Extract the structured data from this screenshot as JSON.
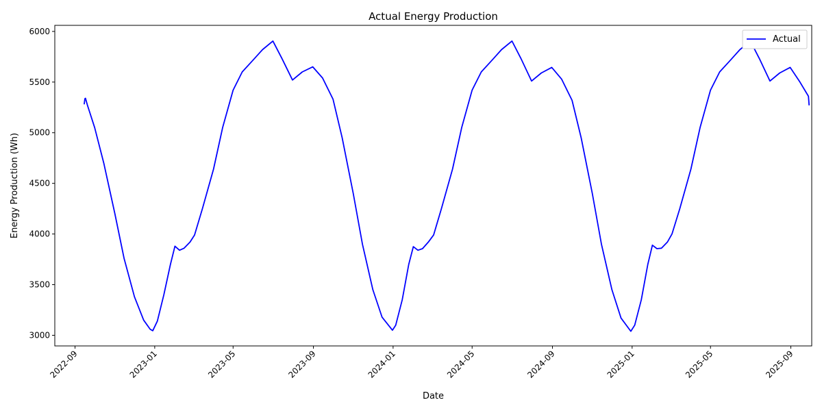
{
  "chart_data": {
    "type": "line",
    "title": "Actual Energy Production",
    "xlabel": "Date",
    "ylabel": "Energy Production (Wh)",
    "x_ticks": [
      "2022-09",
      "2023-01",
      "2023-05",
      "2023-09",
      "2024-01",
      "2024-05",
      "2024-09",
      "2025-01",
      "2025-05",
      "2025-09"
    ],
    "y_ticks": [
      3000,
      3500,
      4000,
      4500,
      5000,
      5500,
      6000
    ],
    "xlim": [
      "2022-08-01",
      "2025-10-03"
    ],
    "ylim": [
      2895,
      6060
    ],
    "legend_position": "top-right",
    "grid": false,
    "series": [
      {
        "name": "Actual",
        "color": "#0000ff",
        "points": [
          [
            "2022-09-15",
            5280
          ],
          [
            "2022-09-16",
            5335
          ],
          [
            "2022-09-17",
            5340
          ],
          [
            "2022-09-20",
            5270
          ],
          [
            "2022-10-01",
            5050
          ],
          [
            "2022-10-15",
            4700
          ],
          [
            "2022-11-01",
            4200
          ],
          [
            "2022-11-15",
            3760
          ],
          [
            "2022-12-01",
            3380
          ],
          [
            "2022-12-15",
            3150
          ],
          [
            "2022-12-25",
            3060
          ],
          [
            "2022-12-29",
            3045
          ],
          [
            "2023-01-05",
            3140
          ],
          [
            "2023-01-15",
            3400
          ],
          [
            "2023-01-25",
            3700
          ],
          [
            "2023-02-01",
            3880
          ],
          [
            "2023-02-08",
            3840
          ],
          [
            "2023-02-15",
            3860
          ],
          [
            "2023-02-24",
            3920
          ],
          [
            "2023-03-03",
            3990
          ],
          [
            "2023-03-15",
            4250
          ],
          [
            "2023-04-01",
            4640
          ],
          [
            "2023-04-15",
            5050
          ],
          [
            "2023-05-01",
            5420
          ],
          [
            "2023-05-15",
            5600
          ],
          [
            "2023-06-01",
            5720
          ],
          [
            "2023-06-15",
            5820
          ],
          [
            "2023-07-01",
            5905
          ],
          [
            "2023-07-15",
            5730
          ],
          [
            "2023-07-31",
            5520
          ],
          [
            "2023-08-15",
            5600
          ],
          [
            "2023-08-31",
            5650
          ],
          [
            "2023-09-15",
            5540
          ],
          [
            "2023-10-01",
            5330
          ],
          [
            "2023-10-15",
            4950
          ],
          [
            "2023-11-01",
            4400
          ],
          [
            "2023-11-15",
            3900
          ],
          [
            "2023-12-01",
            3450
          ],
          [
            "2023-12-15",
            3180
          ],
          [
            "2023-12-31",
            3050
          ],
          [
            "2024-01-05",
            3100
          ],
          [
            "2024-01-15",
            3350
          ],
          [
            "2024-01-25",
            3700
          ],
          [
            "2024-02-01",
            3875
          ],
          [
            "2024-02-08",
            3840
          ],
          [
            "2024-02-15",
            3855
          ],
          [
            "2024-02-24",
            3920
          ],
          [
            "2024-03-03",
            3990
          ],
          [
            "2024-03-15",
            4250
          ],
          [
            "2024-04-01",
            4640
          ],
          [
            "2024-04-15",
            5050
          ],
          [
            "2024-05-01",
            5420
          ],
          [
            "2024-05-15",
            5600
          ],
          [
            "2024-06-01",
            5720
          ],
          [
            "2024-06-15",
            5820
          ],
          [
            "2024-07-01",
            5905
          ],
          [
            "2024-07-15",
            5730
          ],
          [
            "2024-07-31",
            5510
          ],
          [
            "2024-08-15",
            5590
          ],
          [
            "2024-08-31",
            5645
          ],
          [
            "2024-09-15",
            5530
          ],
          [
            "2024-10-01",
            5320
          ],
          [
            "2024-10-15",
            4950
          ],
          [
            "2024-11-01",
            4400
          ],
          [
            "2024-11-15",
            3900
          ],
          [
            "2024-12-01",
            3450
          ],
          [
            "2024-12-15",
            3170
          ],
          [
            "2024-12-30",
            3040
          ],
          [
            "2025-01-05",
            3100
          ],
          [
            "2025-01-15",
            3350
          ],
          [
            "2025-01-25",
            3700
          ],
          [
            "2025-02-01",
            3890
          ],
          [
            "2025-02-08",
            3855
          ],
          [
            "2025-02-15",
            3860
          ],
          [
            "2025-02-24",
            3920
          ],
          [
            "2025-03-03",
            4000
          ],
          [
            "2025-03-15",
            4250
          ],
          [
            "2025-04-01",
            4640
          ],
          [
            "2025-04-15",
            5050
          ],
          [
            "2025-05-01",
            5420
          ],
          [
            "2025-05-15",
            5600
          ],
          [
            "2025-06-01",
            5720
          ],
          [
            "2025-06-15",
            5820
          ],
          [
            "2025-07-01",
            5905
          ],
          [
            "2025-07-15",
            5730
          ],
          [
            "2025-07-31",
            5510
          ],
          [
            "2025-08-15",
            5590
          ],
          [
            "2025-08-31",
            5645
          ],
          [
            "2025-09-15",
            5500
          ],
          [
            "2025-09-28",
            5360
          ],
          [
            "2025-09-29",
            5270
          ]
        ]
      }
    ]
  }
}
